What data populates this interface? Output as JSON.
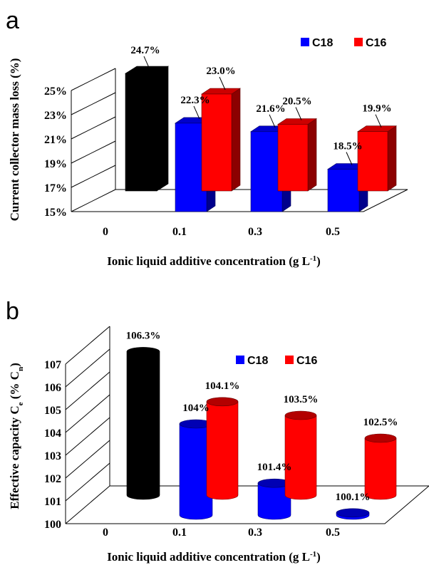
{
  "chart_data": [
    {
      "type": "bar",
      "panel": "a",
      "categories": [
        "0",
        "0.1",
        "0.3",
        "0.5"
      ],
      "series": [
        {
          "name": "",
          "color": "#000000",
          "values": [
            24.7,
            null,
            null,
            null
          ],
          "labels": [
            "24.7%",
            "",
            "",
            ""
          ]
        },
        {
          "name": "C18",
          "color": "#0000ff",
          "values": [
            null,
            22.3,
            21.6,
            18.5
          ],
          "labels": [
            "",
            "22.3%",
            "21.6%",
            "18.5%"
          ]
        },
        {
          "name": "C16",
          "color": "#ff0000",
          "values": [
            null,
            23.0,
            20.5,
            19.9
          ],
          "labels": [
            "",
            "23.0%",
            "20.5%",
            "19.9%"
          ]
        }
      ],
      "ylim": [
        15,
        25
      ],
      "yticks": [
        "15%",
        "17%",
        "19%",
        "21%",
        "23%",
        "25%"
      ],
      "xlabel": "Ionic liquid additive concentration (g L",
      "xlabel_sup": "-1",
      "xlabel_end": ")",
      "ylabel": "Current collector mass loss (%)",
      "legend": [
        "C18",
        "C16"
      ]
    },
    {
      "type": "bar",
      "panel": "b",
      "categories": [
        "0",
        "0.1",
        "0.3",
        "0.5"
      ],
      "series": [
        {
          "name": "",
          "color": "#000000",
          "values": [
            106.3,
            null,
            null,
            null
          ],
          "labels": [
            "106.3%",
            "",
            "",
            ""
          ]
        },
        {
          "name": "C18",
          "color": "#0000ff",
          "values": [
            null,
            104.0,
            101.4,
            100.1
          ],
          "labels": [
            "",
            "104%",
            "101.4%",
            "100.1%"
          ]
        },
        {
          "name": "C16",
          "color": "#ff0000",
          "values": [
            null,
            104.1,
            103.5,
            102.5
          ],
          "labels": [
            "",
            "104.1%",
            "103.5%",
            "102.5%"
          ]
        }
      ],
      "ylim": [
        100,
        107
      ],
      "yticks": [
        "100",
        "101",
        "102",
        "103",
        "104",
        "105",
        "106",
        "107"
      ],
      "xlabel": "Ionic liquid additive concentration (g L",
      "xlabel_sup": "-1",
      "xlabel_end": ")",
      "ylabel": "Effective capacity C",
      "ylabel_sub1": "e",
      "ylabel_mid": " (% C",
      "ylabel_sub2": "n",
      "ylabel_end": ")",
      "legend": [
        "C18",
        "C16"
      ]
    }
  ]
}
